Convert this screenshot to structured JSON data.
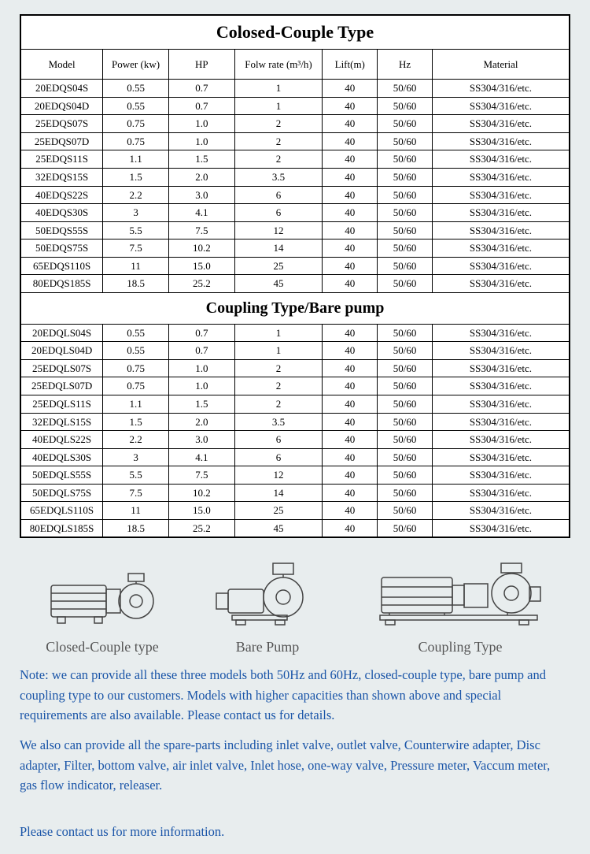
{
  "table": {
    "title": "Colosed-Couple Type",
    "section2_title": "Coupling Type/Bare pump",
    "headers": [
      "Model",
      "Power (kw)",
      "HP",
      "Folw rate (m³/h)",
      "Lift(m)",
      "Hz",
      "Material"
    ],
    "section1_rows": [
      [
        "20EDQS04S",
        "0.55",
        "0.7",
        "1",
        "40",
        "50/60",
        "SS304/316/etc."
      ],
      [
        "20EDQS04D",
        "0.55",
        "0.7",
        "1",
        "40",
        "50/60",
        "SS304/316/etc."
      ],
      [
        "25EDQS07S",
        "0.75",
        "1.0",
        "2",
        "40",
        "50/60",
        "SS304/316/etc."
      ],
      [
        "25EDQS07D",
        "0.75",
        "1.0",
        "2",
        "40",
        "50/60",
        "SS304/316/etc."
      ],
      [
        "25EDQS11S",
        "1.1",
        "1.5",
        "2",
        "40",
        "50/60",
        "SS304/316/etc."
      ],
      [
        "32EDQS15S",
        "1.5",
        "2.0",
        "3.5",
        "40",
        "50/60",
        "SS304/316/etc."
      ],
      [
        "40EDQS22S",
        "2.2",
        "3.0",
        "6",
        "40",
        "50/60",
        "SS304/316/etc."
      ],
      [
        "40EDQS30S",
        "3",
        "4.1",
        "6",
        "40",
        "50/60",
        "SS304/316/etc."
      ],
      [
        "50EDQS55S",
        "5.5",
        "7.5",
        "12",
        "40",
        "50/60",
        "SS304/316/etc."
      ],
      [
        "50EDQS75S",
        "7.5",
        "10.2",
        "14",
        "40",
        "50/60",
        "SS304/316/etc."
      ],
      [
        "65EDQS110S",
        "11",
        "15.0",
        "25",
        "40",
        "50/60",
        "SS304/316/etc."
      ],
      [
        "80EDQS185S",
        "18.5",
        "25.2",
        "45",
        "40",
        "50/60",
        "SS304/316/etc."
      ]
    ],
    "section2_rows": [
      [
        "20EDQLS04S",
        "0.55",
        "0.7",
        "1",
        "40",
        "50/60",
        "SS304/316/etc."
      ],
      [
        "20EDQLS04D",
        "0.55",
        "0.7",
        "1",
        "40",
        "50/60",
        "SS304/316/etc."
      ],
      [
        "25EDQLS07S",
        "0.75",
        "1.0",
        "2",
        "40",
        "50/60",
        "SS304/316/etc."
      ],
      [
        "25EDQLS07D",
        "0.75",
        "1.0",
        "2",
        "40",
        "50/60",
        "SS304/316/etc."
      ],
      [
        "25EDQLS11S",
        "1.1",
        "1.5",
        "2",
        "40",
        "50/60",
        "SS304/316/etc."
      ],
      [
        "32EDQLS15S",
        "1.5",
        "2.0",
        "3.5",
        "40",
        "50/60",
        "SS304/316/etc."
      ],
      [
        "40EDQLS22S",
        "2.2",
        "3.0",
        "6",
        "40",
        "50/60",
        "SS304/316/etc."
      ],
      [
        "40EDQLS30S",
        "3",
        "4.1",
        "6",
        "40",
        "50/60",
        "SS304/316/etc."
      ],
      [
        "50EDQLS55S",
        "5.5",
        "7.5",
        "12",
        "40",
        "50/60",
        "SS304/316/etc."
      ],
      [
        "50EDQLS75S",
        "7.5",
        "10.2",
        "14",
        "40",
        "50/60",
        "SS304/316/etc."
      ],
      [
        "65EDQLS110S",
        "11",
        "15.0",
        "25",
        "40",
        "50/60",
        "SS304/316/etc."
      ],
      [
        "80EDQLS185S",
        "18.5",
        "25.2",
        "45",
        "40",
        "50/60",
        "SS304/316/etc."
      ]
    ]
  },
  "diagrams": {
    "labels": [
      "Closed-Couple type",
      "Bare Pump",
      "Coupling Type"
    ]
  },
  "note": {
    "p1": "Note: we can provide all these three models both 50Hz and 60Hz, closed-couple type, bare pump and coupling type to our customers. Models with higher capacities than shown above and special requirements are also available. Please contact us for details.",
    "p2": "We also can provide all the spare-parts including inlet valve, outlet valve, Counterwire adapter, Disc adapter, Filter, bottom valve, air inlet valve, Inlet hose, one-way valve, Pressure meter, Vaccum meter, gas flow indicator, releaser."
  },
  "contact": "Please contact us for more information."
}
